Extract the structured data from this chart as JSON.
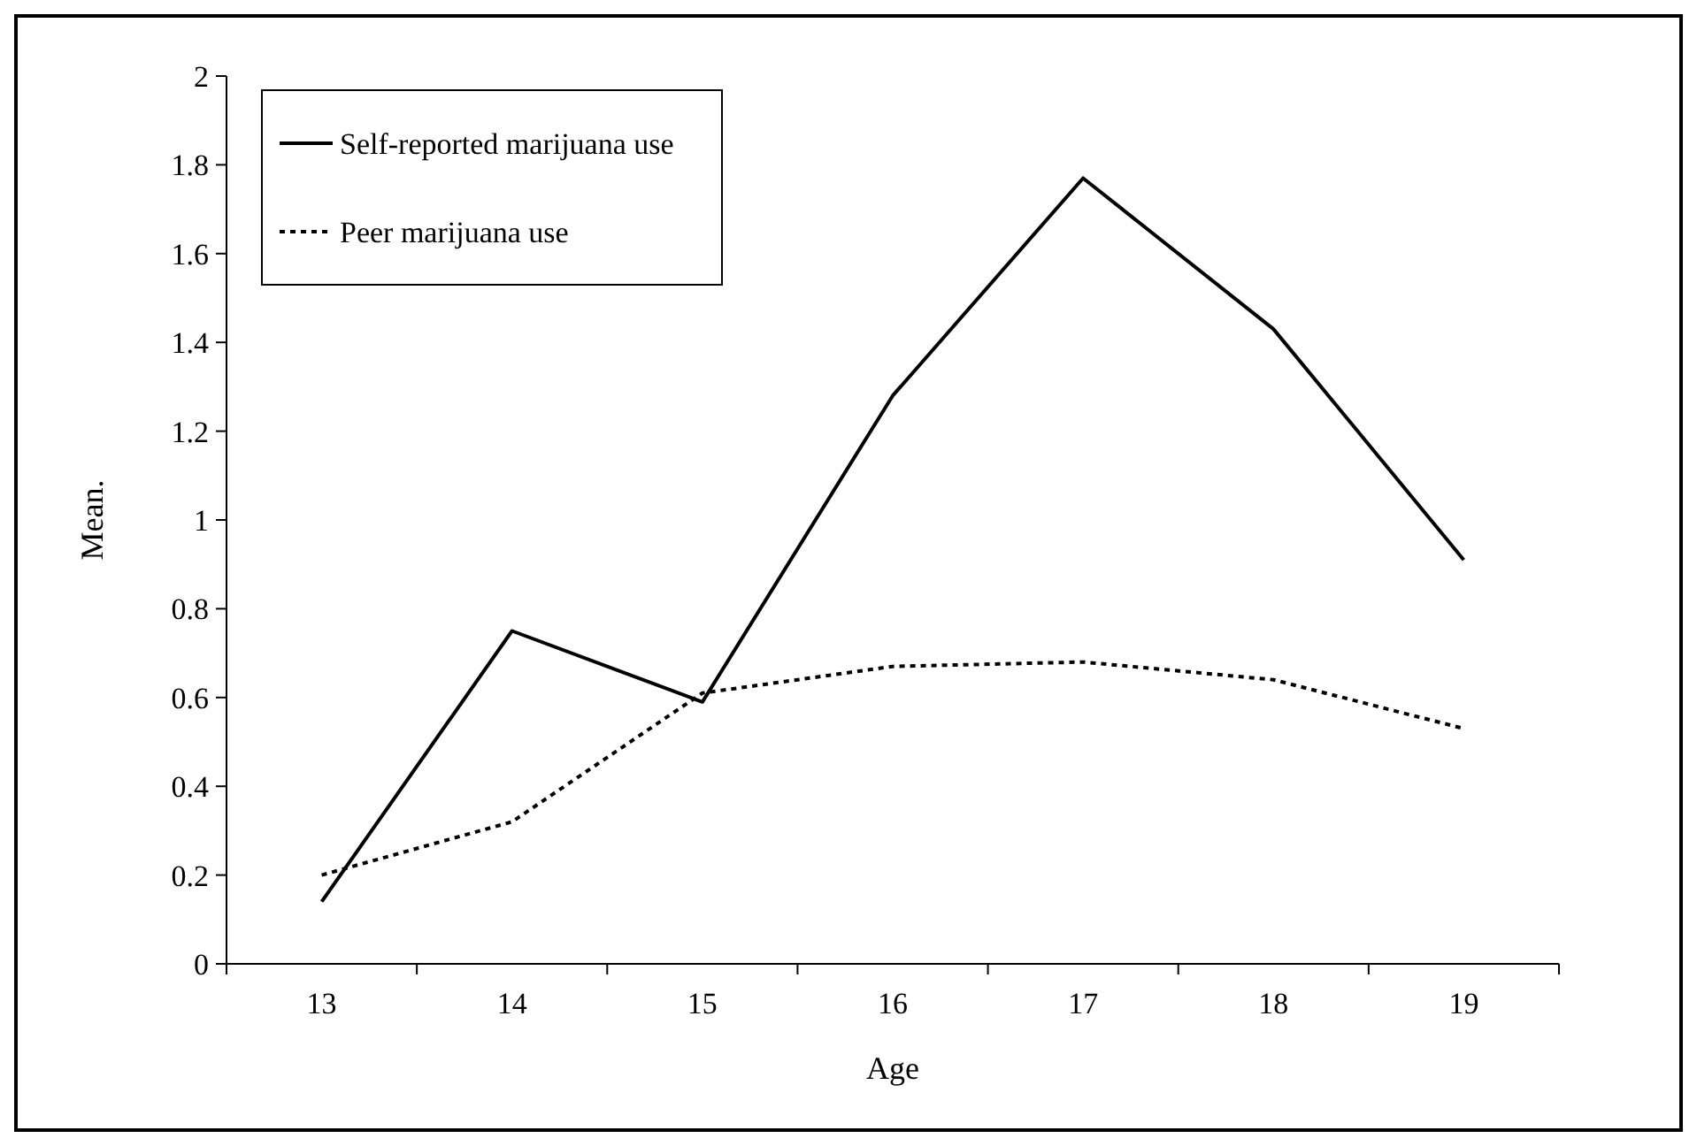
{
  "chart_data": {
    "type": "line",
    "xlabel": "Age",
    "ylabel": "Mean.",
    "categories": [
      "13",
      "14",
      "15",
      "16",
      "17",
      "18",
      "19"
    ],
    "ylim": [
      0,
      2
    ],
    "yticks": [
      0,
      0.2,
      0.4,
      0.6,
      0.8,
      1,
      1.2,
      1.4,
      1.6,
      1.8,
      2
    ],
    "grid": false,
    "legend": "top left",
    "series": [
      {
        "name": "Self-reported marijuana use",
        "color": "#000000",
        "line_style": "solid",
        "values": [
          0.14,
          0.75,
          0.59,
          1.28,
          1.77,
          1.43,
          0.91
        ]
      },
      {
        "name": "Peer marijuana use",
        "color": "#000000",
        "line_style": "dotted",
        "values": [
          0.2,
          0.32,
          0.61,
          0.67,
          0.68,
          0.64,
          0.53
        ]
      }
    ]
  }
}
